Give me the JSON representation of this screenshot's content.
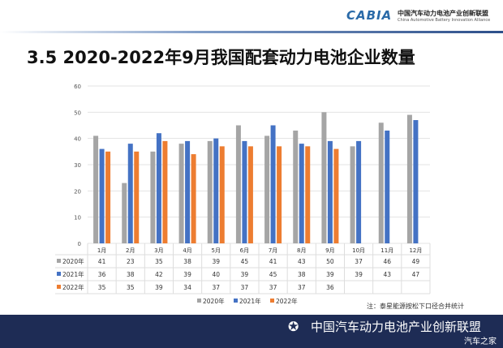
{
  "header": {
    "logo_text": "CABIA",
    "logo_cn": "中国汽车动力电池产业创新联盟",
    "logo_en": "China Automotive Battery Innovation Alliance"
  },
  "title": "3.5 2020-2022年9月我国配套动力电池企业数量",
  "note": "注：泰星能源按松下口径合并统计",
  "banner": {
    "text": "中国汽车动力电池产业创新联盟",
    "watermark": "汽车之家"
  },
  "chart_data": {
    "type": "bar",
    "categories": [
      "1月",
      "2月",
      "3月",
      "4月",
      "5月",
      "6月",
      "7月",
      "8月",
      "9月",
      "10月",
      "11月",
      "12月"
    ],
    "series": [
      {
        "name": "2020年",
        "color": "#a5a5a5",
        "values": [
          41,
          23,
          35,
          38,
          39,
          45,
          41,
          43,
          50,
          37,
          46,
          49
        ]
      },
      {
        "name": "2021年",
        "color": "#4472c4",
        "values": [
          36,
          38,
          42,
          39,
          40,
          39,
          45,
          38,
          39,
          39,
          43,
          47
        ]
      },
      {
        "name": "2022年",
        "color": "#ed7d31",
        "values": [
          35,
          35,
          39,
          34,
          37,
          37,
          37,
          37,
          36,
          null,
          null,
          null
        ]
      }
    ],
    "ylim": [
      0,
      60
    ],
    "yticks": [
      0,
      10,
      20,
      30,
      40,
      50,
      60
    ],
    "grid": true,
    "legend": "bottom",
    "data_table": true
  }
}
